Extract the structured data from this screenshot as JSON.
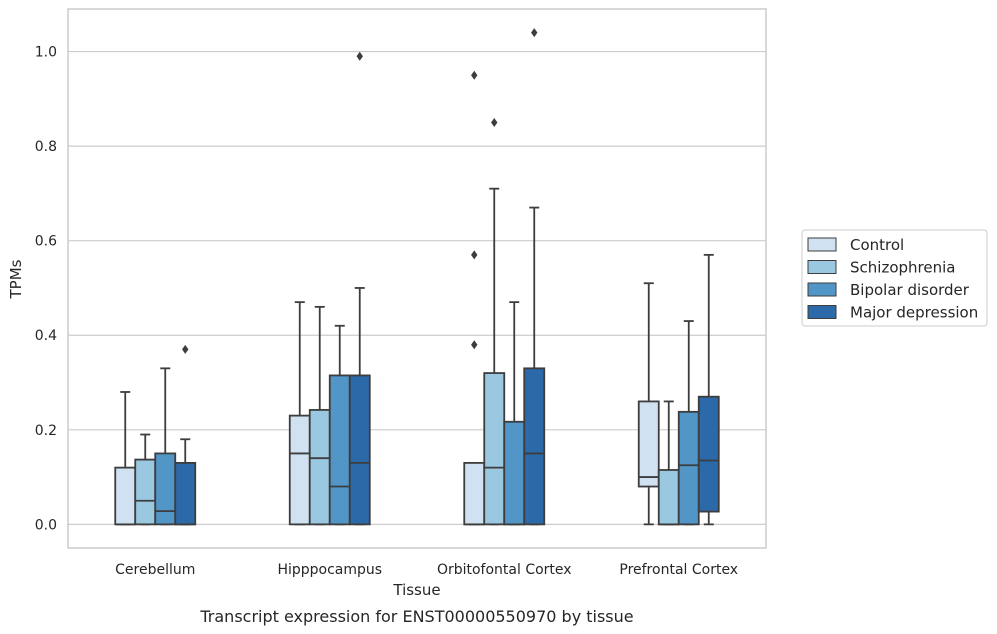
{
  "chart_data": {
    "type": "box",
    "caption": "Transcript expression for ENST00000550970 by tissue",
    "xlabel": "Tissue",
    "ylabel": "TPMs",
    "ylim": [
      -0.05,
      1.09
    ],
    "yticks": [
      "0.0",
      "0.2",
      "0.4",
      "0.6",
      "0.8",
      "1.0"
    ],
    "grid": true,
    "legend_position": "right",
    "categories": [
      "Cerebellum",
      "Hipppocampus",
      "Orbitofontal Cortex",
      "Prefrontal Cortex"
    ],
    "series": [
      {
        "name": "Control",
        "color": "#d0e1f2",
        "boxes": [
          {
            "whislo": 0.0,
            "q1": 0.0,
            "med": 0.0,
            "q3": 0.12,
            "whishi": 0.28,
            "fliers": []
          },
          {
            "whislo": 0.0,
            "q1": 0.0,
            "med": 0.15,
            "q3": 0.23,
            "whishi": 0.47,
            "fliers": []
          },
          {
            "whislo": 0.0,
            "q1": 0.0,
            "med": 0.0,
            "q3": 0.13,
            "whishi": 0.13,
            "fliers": [
              0.38,
              0.57,
              0.95
            ]
          },
          {
            "whislo": 0.0,
            "q1": 0.08,
            "med": 0.1,
            "q3": 0.26,
            "whishi": 0.51,
            "fliers": []
          }
        ]
      },
      {
        "name": "Schizophrenia",
        "color": "#9ac8e0",
        "boxes": [
          {
            "whislo": 0.0,
            "q1": 0.0,
            "med": 0.05,
            "q3": 0.137,
            "whishi": 0.19,
            "fliers": []
          },
          {
            "whislo": 0.0,
            "q1": 0.0,
            "med": 0.14,
            "q3": 0.242,
            "whishi": 0.46,
            "fliers": []
          },
          {
            "whislo": 0.0,
            "q1": 0.0,
            "med": 0.12,
            "q3": 0.32,
            "whishi": 0.71,
            "fliers": [
              0.85
            ]
          },
          {
            "whislo": 0.0,
            "q1": 0.0,
            "med": 0.0,
            "q3": 0.115,
            "whishi": 0.26,
            "fliers": []
          }
        ]
      },
      {
        "name": "Bipolar disorder",
        "color": "#5296c8",
        "boxes": [
          {
            "whislo": 0.0,
            "q1": 0.0,
            "med": 0.028,
            "q3": 0.15,
            "whishi": 0.33,
            "fliers": []
          },
          {
            "whislo": 0.0,
            "q1": 0.0,
            "med": 0.08,
            "q3": 0.315,
            "whishi": 0.42,
            "fliers": []
          },
          {
            "whislo": 0.0,
            "q1": 0.0,
            "med": 0.0,
            "q3": 0.217,
            "whishi": 0.47,
            "fliers": []
          },
          {
            "whislo": 0.0,
            "q1": 0.0,
            "med": 0.125,
            "q3": 0.238,
            "whishi": 0.43,
            "fliers": []
          }
        ]
      },
      {
        "name": "Major depression",
        "color": "#2b69a8",
        "boxes": [
          {
            "whislo": 0.0,
            "q1": 0.0,
            "med": 0.0,
            "q3": 0.13,
            "whishi": 0.18,
            "fliers": [
              0.37
            ]
          },
          {
            "whislo": 0.0,
            "q1": 0.0,
            "med": 0.13,
            "q3": 0.315,
            "whishi": 0.5,
            "fliers": [
              0.99
            ]
          },
          {
            "whislo": 0.0,
            "q1": 0.0,
            "med": 0.15,
            "q3": 0.33,
            "whishi": 0.67,
            "fliers": [
              1.04
            ]
          },
          {
            "whislo": 0.0,
            "q1": 0.027,
            "med": 0.135,
            "q3": 0.27,
            "whishi": 0.57,
            "fliers": []
          }
        ]
      }
    ]
  }
}
